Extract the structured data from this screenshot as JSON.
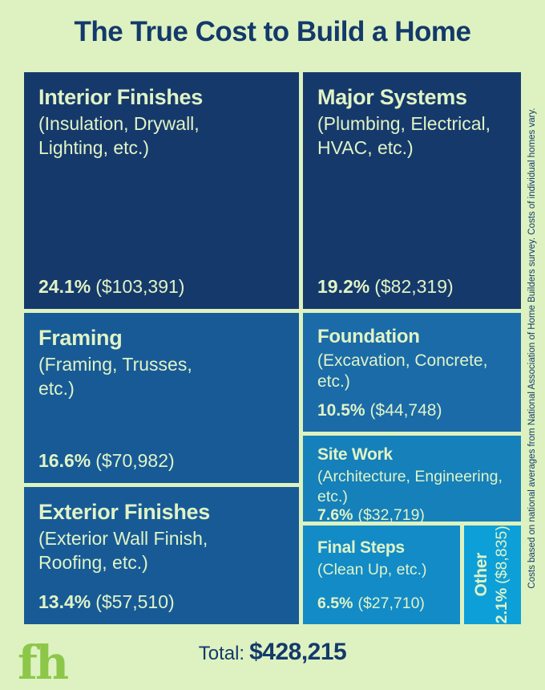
{
  "page": {
    "title": "The True Cost to Build a Home",
    "footnote": "Costs based on national averages from National Association of Home Builders survey.  Costs of individual homes vary.",
    "total_label": "Total:",
    "total_value": "$428,215",
    "logo": "fh"
  },
  "colors": {
    "background": "#ddf2c0",
    "navy_text": "#14396b",
    "cell_text_green": "#e0f3c6",
    "logo_green": "#8dc74a",
    "cell_dark_navy": "#16396b",
    "cell_medium_blue": "#175a96",
    "cell_foundation_blue": "#1a6ba8",
    "cell_sitework_blue": "#1580ba",
    "cell_finalsteps_blue": "#128bc7",
    "cell_other_cyan": "#0d9fd8"
  },
  "chart_data": {
    "type": "treemap",
    "title": "The True Cost to Build a Home",
    "total": 428215,
    "total_display": "$428,215",
    "legend_position": "none",
    "segments": [
      {
        "name": "Interior Finishes",
        "detail": "(Insulation, Drywall, Lighting, etc.)",
        "percent": "24.1%",
        "value": "($103,391)",
        "amount": 103391,
        "percent_num": 24.1
      },
      {
        "name": "Major Systems",
        "detail": "(Plumbing, Electrical, HVAC, etc.)",
        "percent": "19.2%",
        "value": "($82,319)",
        "amount": 82319,
        "percent_num": 19.2
      },
      {
        "name": "Framing",
        "detail": "(Framing, Trusses, etc.)",
        "percent": "16.6%",
        "value": "($70,982)",
        "amount": 70982,
        "percent_num": 16.6
      },
      {
        "name": "Exterior Finishes",
        "detail": "(Exterior Wall Finish, Roofing, etc.)",
        "percent": "13.4%",
        "value": "($57,510)",
        "amount": 57510,
        "percent_num": 13.4
      },
      {
        "name": "Foundation",
        "detail": "(Excavation, Concrete, etc.)",
        "percent": "10.5%",
        "value": "($44,748)",
        "amount": 44748,
        "percent_num": 10.5
      },
      {
        "name": "Site Work",
        "detail": "(Architecture, Engineering, etc.)",
        "percent": "7.6%",
        "value": "($32,719)",
        "amount": 32719,
        "percent_num": 7.6
      },
      {
        "name": "Final Steps",
        "detail": "(Clean Up, etc.)",
        "percent": "6.5%",
        "value": "($27,710)",
        "amount": 27710,
        "percent_num": 6.5
      },
      {
        "name": "Other",
        "detail": "",
        "percent": "2.1%",
        "value": "($8,835)",
        "amount": 8835,
        "percent_num": 2.1
      }
    ]
  }
}
